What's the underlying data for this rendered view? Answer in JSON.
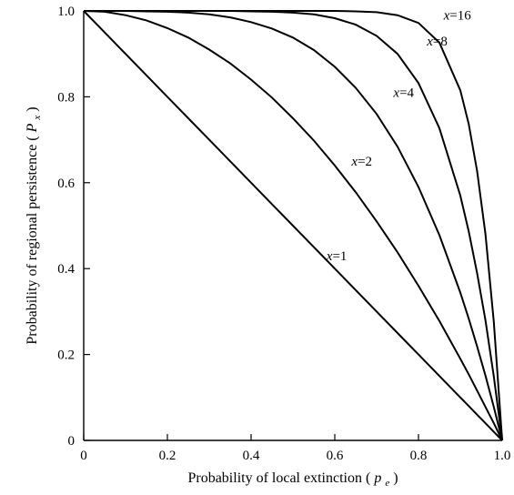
{
  "chart_data": {
    "type": "line",
    "xlabel": "Probability of local extinction",
    "xlabel_symbol": "p",
    "xlabel_subscript": "e",
    "ylabel": "Probability of regional persistence",
    "ylabel_symbol": "P",
    "ylabel_subscript": "x",
    "xlim": [
      0,
      1
    ],
    "ylim": [
      0,
      1
    ],
    "x_ticks": [
      0,
      0.2,
      0.4,
      0.6,
      0.8,
      1.0
    ],
    "x_tick_labels": [
      "0",
      "0.2",
      "0.4",
      "0.6",
      "0.8",
      "1.0"
    ],
    "y_ticks": [
      0,
      0.2,
      0.4,
      0.6,
      0.8,
      1.0
    ],
    "y_tick_labels": [
      "0",
      "0.2",
      "0.4",
      "0.6",
      "0.8",
      "1.0"
    ],
    "grid": false,
    "x": [
      0,
      0.05,
      0.1,
      0.15,
      0.2,
      0.25,
      0.3,
      0.35,
      0.4,
      0.45,
      0.5,
      0.55,
      0.6,
      0.65,
      0.7,
      0.75,
      0.8,
      0.85,
      0.9,
      0.92,
      0.94,
      0.96,
      0.98,
      1.0
    ],
    "series": [
      {
        "name": "x=1",
        "label_var": "x",
        "label_value": "=1",
        "label_at": [
          0.58,
          0.42
        ],
        "values": [
          1,
          0.95,
          0.9,
          0.85,
          0.8,
          0.75,
          0.7,
          0.65,
          0.6,
          0.55,
          0.5,
          0.45,
          0.4,
          0.35,
          0.3,
          0.25,
          0.2,
          0.15,
          0.1,
          0.08,
          0.06,
          0.04,
          0.02,
          0
        ]
      },
      {
        "name": "x=2",
        "label_var": "x",
        "label_value": "=2",
        "label_at": [
          0.64,
          0.64
        ],
        "values": [
          1,
          0.998,
          0.99,
          0.978,
          0.96,
          0.938,
          0.91,
          0.878,
          0.84,
          0.798,
          0.75,
          0.698,
          0.64,
          0.578,
          0.51,
          0.438,
          0.36,
          0.278,
          0.19,
          0.154,
          0.116,
          0.078,
          0.04,
          0
        ]
      },
      {
        "name": "x=4",
        "label_var": "x",
        "label_value": "=4",
        "label_at": [
          0.74,
          0.8
        ],
        "values": [
          1,
          1,
          1,
          0.999,
          0.998,
          0.996,
          0.992,
          0.985,
          0.974,
          0.959,
          0.938,
          0.909,
          0.87,
          0.821,
          0.76,
          0.684,
          0.59,
          0.478,
          0.344,
          0.284,
          0.219,
          0.151,
          0.078,
          0
        ]
      },
      {
        "name": "x=8",
        "label_var": "x",
        "label_value": "=8",
        "label_at": [
          0.82,
          0.92
        ],
        "values": [
          1,
          1,
          1,
          1,
          1,
          1,
          1,
          1,
          0.999,
          0.998,
          0.996,
          0.992,
          0.983,
          0.968,
          0.942,
          0.9,
          0.832,
          0.727,
          0.57,
          0.487,
          0.39,
          0.28,
          0.149,
          0
        ]
      },
      {
        "name": "x=16",
        "label_var": "x",
        "label_value": "=16",
        "label_at": [
          0.86,
          0.98
        ],
        "values": [
          1,
          1,
          1,
          1,
          1,
          1,
          1,
          1,
          1,
          1,
          1,
          1,
          1,
          0.999,
          0.997,
          0.99,
          0.972,
          0.926,
          0.815,
          0.737,
          0.628,
          0.481,
          0.276,
          0
        ]
      }
    ]
  }
}
